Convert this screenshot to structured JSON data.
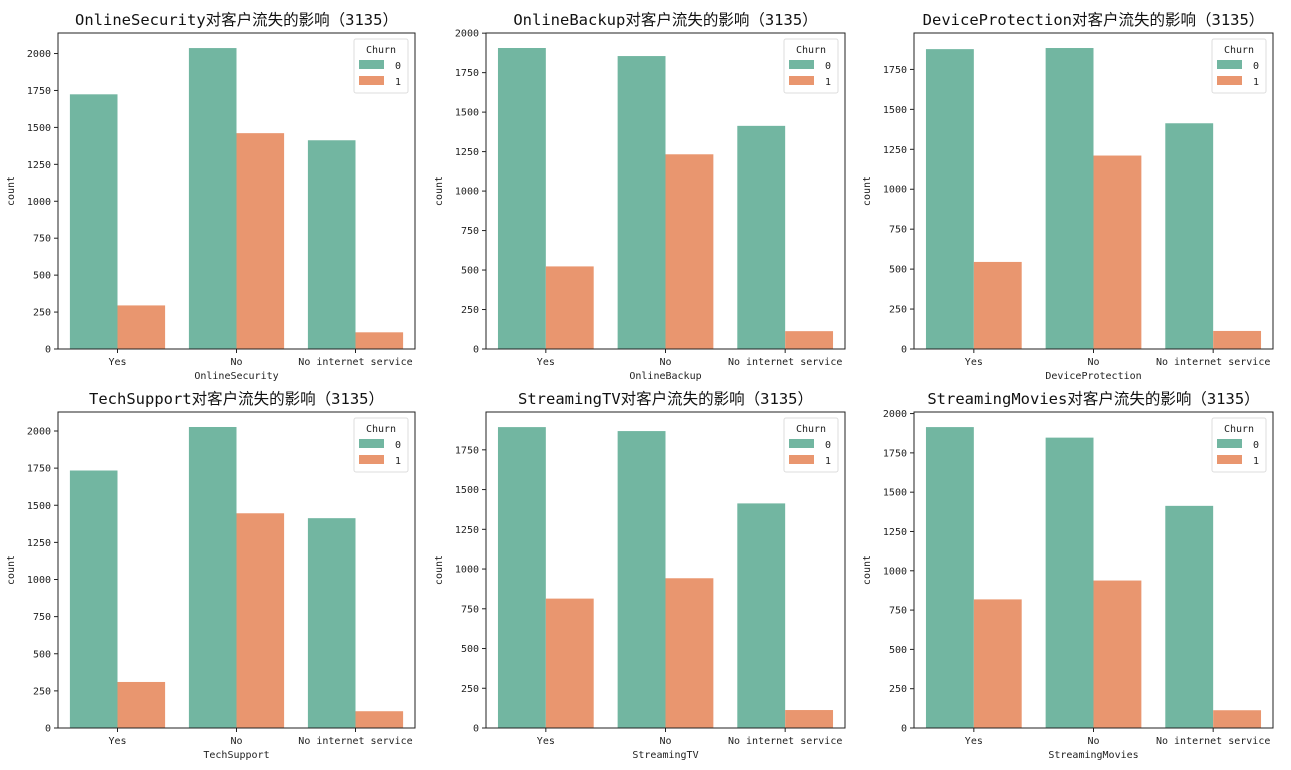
{
  "colors": {
    "churn_0": "#72b6a1",
    "churn_1": "#e9966f"
  },
  "chart_data": [
    {
      "type": "bar",
      "title": "OnlineSecurity对客户流失的影响（3135）",
      "xlabel": "OnlineSecurity",
      "ylabel": "count",
      "categories": [
        "Yes",
        "No",
        "No internet service"
      ],
      "series": [
        {
          "name": "0",
          "values": [
            1724,
            2037,
            1413
          ]
        },
        {
          "name": "1",
          "values": [
            295,
            1461,
            113
          ]
        }
      ],
      "ylim": [
        0,
        2139
      ],
      "yticks": [
        0,
        250,
        500,
        750,
        1000,
        1250,
        1500,
        1750,
        2000
      ],
      "legend": {
        "title": "Churn",
        "position": "top-right"
      }
    },
    {
      "type": "bar",
      "title": "OnlineBackup对客户流失的影响（3135）",
      "xlabel": "OnlineBackup",
      "ylabel": "count",
      "categories": [
        "Yes",
        "No",
        "No internet service"
      ],
      "series": [
        {
          "name": "0",
          "values": [
            1906,
            1855,
            1413
          ]
        },
        {
          "name": "1",
          "values": [
            523,
            1233,
            113
          ]
        }
      ],
      "ylim": [
        0,
        2001
      ],
      "yticks": [
        0,
        250,
        500,
        750,
        1000,
        1250,
        1500,
        1750,
        2000
      ],
      "legend": {
        "title": "Churn",
        "position": "top-right"
      }
    },
    {
      "type": "bar",
      "title": "DeviceProtection对客户流失的影响（3135）",
      "xlabel": "DeviceProtection",
      "ylabel": "count",
      "categories": [
        "Yes",
        "No",
        "No internet service"
      ],
      "series": [
        {
          "name": "0",
          "values": [
            1877,
            1884,
            1413
          ]
        },
        {
          "name": "1",
          "values": [
            545,
            1211,
            113
          ]
        }
      ],
      "ylim": [
        0,
        1978
      ],
      "yticks": [
        0,
        250,
        500,
        750,
        1000,
        1250,
        1500,
        1750
      ],
      "legend": {
        "title": "Churn",
        "position": "top-right"
      }
    },
    {
      "type": "bar",
      "title": "TechSupport对客户流失的影响（3135）",
      "xlabel": "TechSupport",
      "ylabel": "count",
      "categories": [
        "Yes",
        "No",
        "No internet service"
      ],
      "series": [
        {
          "name": "0",
          "values": [
            1734,
            2027,
            1413
          ]
        },
        {
          "name": "1",
          "values": [
            310,
            1446,
            113
          ]
        }
      ],
      "ylim": [
        0,
        2128
      ],
      "yticks": [
        0,
        250,
        500,
        750,
        1000,
        1250,
        1500,
        1750,
        2000
      ],
      "legend": {
        "title": "Churn",
        "position": "top-right"
      }
    },
    {
      "type": "bar",
      "title": "StreamingTV对客户流失的影响（3135）",
      "xlabel": "StreamingTV",
      "ylabel": "count",
      "categories": [
        "Yes",
        "No",
        "No internet service"
      ],
      "series": [
        {
          "name": "0",
          "values": [
            1893,
            1868,
            1413
          ]
        },
        {
          "name": "1",
          "values": [
            814,
            942,
            113
          ]
        }
      ],
      "ylim": [
        0,
        1988
      ],
      "yticks": [
        0,
        250,
        500,
        750,
        1000,
        1250,
        1500,
        1750
      ],
      "legend": {
        "title": "Churn",
        "position": "top-right"
      }
    },
    {
      "type": "bar",
      "title": "StreamingMovies对客户流失的影响（3135）",
      "xlabel": "StreamingMovies",
      "ylabel": "count",
      "categories": [
        "Yes",
        "No",
        "No internet service"
      ],
      "series": [
        {
          "name": "0",
          "values": [
            1914,
            1847,
            1413
          ]
        },
        {
          "name": "1",
          "values": [
            818,
            938,
            113
          ]
        }
      ],
      "ylim": [
        0,
        2010
      ],
      "yticks": [
        0,
        250,
        500,
        750,
        1000,
        1250,
        1500,
        1750,
        2000
      ],
      "legend": {
        "title": "Churn",
        "position": "top-right"
      }
    }
  ]
}
